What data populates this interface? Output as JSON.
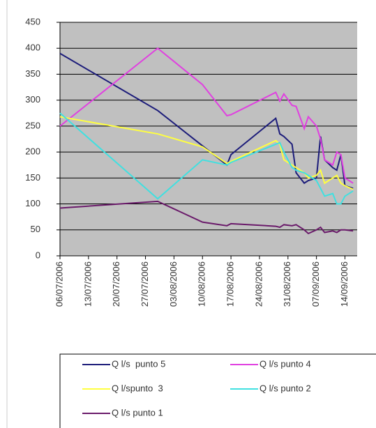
{
  "chart_data": {
    "type": "line",
    "x": [
      "06/07/2006",
      "30/07/2006",
      "10/08/2006",
      "16/08/2006",
      "17/08/2006",
      "28/08/2006",
      "29/08/2006",
      "30/08/2006",
      "01/09/2006",
      "02/09/2006",
      "04/09/2006",
      "05/09/2006",
      "07/09/2006",
      "08/09/2006",
      "09/09/2006",
      "11/09/2006",
      "12/09/2006",
      "13/09/2006",
      "14/09/2006",
      "16/09/2006"
    ],
    "xlim": [
      "06/07/2006",
      "17/09/2006"
    ],
    "xticks": [
      "06/07/2006",
      "13/07/2006",
      "20/07/2006",
      "27/07/2006",
      "03/08/2006",
      "10/08/2006",
      "17/08/2006",
      "24/08/2006",
      "31/08/2006",
      "07/09/2006",
      "14/09/2006"
    ],
    "ylim": [
      0,
      450
    ],
    "yticks": [
      0,
      50,
      100,
      150,
      200,
      250,
      300,
      350,
      400,
      450
    ],
    "grid": true,
    "series": [
      {
        "name": "Q l/s  punto 5",
        "color": "#1c1c7a",
        "values": [
          390,
          280,
          212,
          175,
          195,
          265,
          235,
          230,
          215,
          160,
          140,
          145,
          150,
          230,
          185,
          170,
          165,
          195,
          135,
          130
        ]
      },
      {
        "name": "Q l/s punto 4",
        "color": "#e040e0",
        "values": [
          250,
          400,
          330,
          270,
          272,
          315,
          298,
          312,
          290,
          288,
          245,
          268,
          250,
          225,
          185,
          175,
          200,
          195,
          150,
          140
        ]
      },
      {
        "name": "Q l/spunto  3",
        "color": "#ffff40",
        "values": [
          268,
          235,
          210,
          178,
          182,
          222,
          215,
          185,
          175,
          170,
          160,
          150,
          155,
          165,
          140,
          150,
          155,
          140,
          135,
          128
        ]
      },
      {
        "name": "Q l/s punto 2",
        "color": "#40e0e0",
        "values": [
          275,
          110,
          185,
          175,
          180,
          215,
          218,
          200,
          170,
          165,
          160,
          155,
          145,
          130,
          115,
          120,
          100,
          100,
          115,
          125
        ]
      },
      {
        "name": "Q l/s punto 1",
        "color": "#6a1a6a",
        "values": [
          92,
          105,
          65,
          58,
          62,
          57,
          55,
          60,
          58,
          60,
          50,
          43,
          50,
          55,
          45,
          48,
          45,
          50,
          50,
          48
        ]
      }
    ]
  }
}
